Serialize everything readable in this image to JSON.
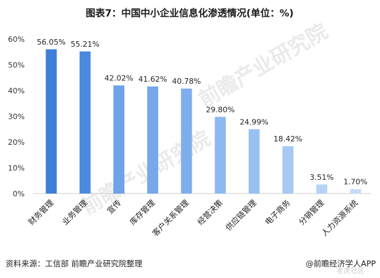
{
  "chart_data": {
    "type": "bar",
    "title": "图表7：中国中小企业信息化渗透情况(单位：%)",
    "categories": [
      "财务管理",
      "业务管理",
      "宣传",
      "库存管理",
      "客户关系管理",
      "经营决策",
      "供应链管理",
      "电子商务",
      "分销管理",
      "人力资源系统"
    ],
    "values": [
      56.05,
      55.21,
      42.02,
      41.62,
      40.78,
      29.8,
      24.99,
      18.42,
      3.51,
      1.7
    ],
    "value_labels": [
      "56.05%",
      "55.21%",
      "42.02%",
      "41.62%",
      "40.78%",
      "29.80%",
      "24.99%",
      "18.42%",
      "3.51%",
      "1.70%"
    ],
    "ylim": [
      0,
      60
    ],
    "yticks": [
      "0%",
      "10%",
      "20%",
      "30%",
      "40%",
      "50%",
      "60%"
    ],
    "ytick_values": [
      0,
      10,
      20,
      30,
      40,
      50,
      60
    ],
    "grid": false,
    "bar_colors": [
      "#3d7fd9",
      "#4b89dd",
      "#6ea3e8",
      "#76a8ea",
      "#7faeed",
      "#8cb8ef",
      "#98c0f1",
      "#a7c9f4",
      "#b6d3f6",
      "#c4dcf8"
    ]
  },
  "footer": {
    "source": "资料来源：工信部 前瞻产业研究院整理",
    "brand": "@前瞻经济学人APP"
  },
  "watermark": {
    "text": "前瞻产业研究院",
    "corner": "老虎社区"
  }
}
